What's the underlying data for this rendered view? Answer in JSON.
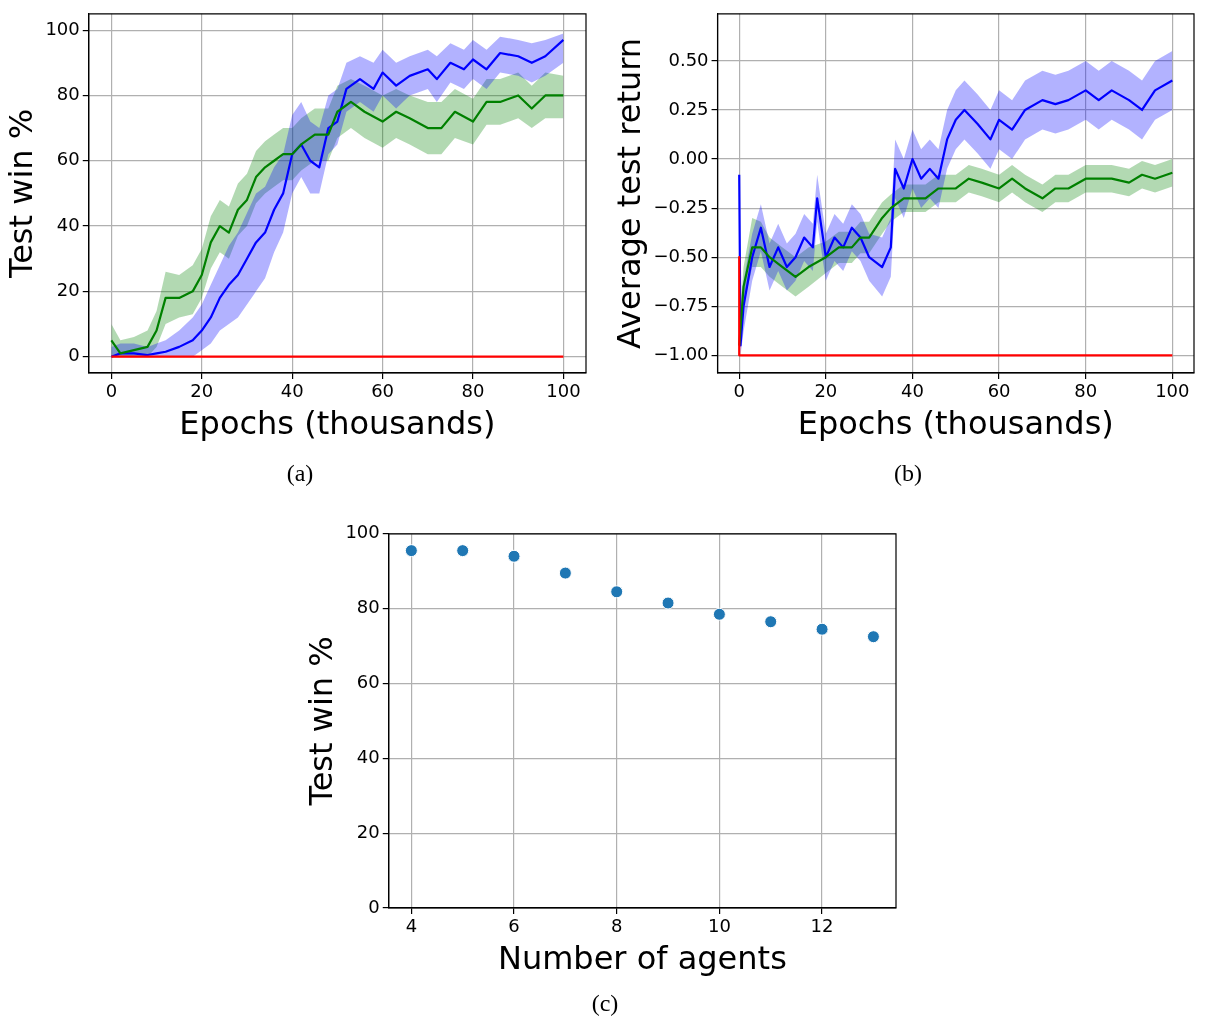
{
  "chart_data": [
    {
      "type": "line",
      "xlabel": "Epochs (thousands)",
      "ylabel": "Test win %",
      "xlim": [
        -5,
        105
      ],
      "ylim": [
        -5,
        105
      ],
      "xticks": [
        0,
        20,
        40,
        60,
        80,
        100
      ],
      "yticks": [
        0,
        20,
        40,
        60,
        80,
        100
      ],
      "grid": true,
      "annotations": [
        "(a)"
      ],
      "series": [
        {
          "color": "#0000ff",
          "x": [
            0,
            2,
            5,
            8,
            10,
            12,
            15,
            18,
            20,
            22,
            24,
            26,
            28,
            30,
            32,
            34,
            36,
            38,
            40,
            42,
            44,
            46,
            48,
            50,
            52,
            55,
            58,
            60,
            63,
            66,
            70,
            72,
            75,
            78,
            80,
            83,
            86,
            90,
            93,
            96,
            100
          ],
          "values": [
            0,
            1,
            1,
            0.5,
            1,
            1.5,
            3,
            5,
            8,
            12,
            18,
            22,
            25,
            30,
            35,
            38,
            45,
            50,
            62,
            65,
            60,
            58,
            70,
            72,
            82,
            85,
            82,
            87,
            83,
            86,
            88,
            85,
            90,
            88,
            91,
            88,
            93,
            92,
            90,
            92,
            97
          ],
          "lower": [
            0,
            0,
            0,
            0,
            0,
            0,
            0,
            0,
            2,
            4,
            8,
            10,
            12,
            16,
            20,
            24,
            32,
            38,
            50,
            55,
            50,
            50,
            62,
            65,
            75,
            78,
            75,
            80,
            76,
            80,
            82,
            78,
            84,
            82,
            85,
            82,
            87,
            86,
            84,
            86,
            90
          ],
          "upper": [
            3,
            4,
            4,
            3,
            4,
            5,
            8,
            12,
            16,
            22,
            28,
            34,
            38,
            44,
            50,
            52,
            58,
            62,
            74,
            78,
            72,
            70,
            80,
            82,
            90,
            92,
            90,
            94,
            90,
            92,
            94,
            92,
            96,
            94,
            97,
            94,
            98,
            97,
            96,
            97,
            99
          ]
        },
        {
          "color": "#008000",
          "x": [
            0,
            2,
            5,
            8,
            10,
            12,
            15,
            18,
            20,
            22,
            24,
            26,
            28,
            30,
            32,
            34,
            36,
            38,
            40,
            42,
            45,
            48,
            50,
            53,
            56,
            60,
            63,
            66,
            70,
            73,
            76,
            80,
            83,
            86,
            90,
            93,
            96,
            100
          ],
          "values": [
            5,
            1,
            2,
            3,
            8,
            18,
            18,
            20,
            25,
            35,
            40,
            38,
            45,
            48,
            55,
            58,
            60,
            62,
            62,
            65,
            68,
            68,
            75,
            78,
            75,
            72,
            75,
            73,
            70,
            70,
            75,
            72,
            78,
            78,
            80,
            76,
            80,
            80
          ],
          "lower": [
            0,
            0,
            0,
            0,
            3,
            10,
            12,
            13,
            18,
            27,
            32,
            30,
            37,
            40,
            47,
            50,
            52,
            54,
            54,
            57,
            60,
            60,
            67,
            70,
            67,
            64,
            67,
            65,
            62,
            62,
            67,
            65,
            71,
            71,
            73,
            70,
            73,
            73
          ],
          "upper": [
            10,
            5,
            6,
            8,
            14,
            26,
            25,
            28,
            33,
            43,
            48,
            46,
            53,
            56,
            63,
            66,
            68,
            70,
            70,
            73,
            76,
            76,
            83,
            85,
            83,
            80,
            82,
            80,
            78,
            78,
            82,
            79,
            85,
            85,
            87,
            83,
            87,
            86
          ]
        },
        {
          "color": "#ff0000",
          "x": [
            0,
            100
          ],
          "values": [
            0,
            0
          ]
        }
      ]
    },
    {
      "type": "line",
      "xlabel": "Epochs (thousands)",
      "ylabel": "Average test return",
      "xlim": [
        -5,
        105
      ],
      "ylim": [
        -1.09,
        0.74
      ],
      "xticks": [
        0,
        20,
        40,
        60,
        80,
        100
      ],
      "yticks": [
        {
          "value": -1,
          "label": "−1.00"
        },
        {
          "value": -0.75,
          "label": "−0.75"
        },
        {
          "value": -0.5,
          "label": "−0.50"
        },
        {
          "value": -0.25,
          "label": "−0.25"
        },
        {
          "value": 0,
          "label": "0.00"
        },
        {
          "value": 0.25,
          "label": "0.25"
        },
        {
          "value": 0.5,
          "label": "0.50"
        }
      ],
      "grid": true,
      "annotations": [
        "(b)"
      ],
      "series": [
        {
          "color": "#0000ff",
          "x": [
            0,
            0.3,
            1,
            3,
            5,
            7,
            9,
            11,
            13,
            15,
            17,
            18,
            20,
            22,
            24,
            26,
            28,
            30,
            33,
            35,
            36,
            38,
            40,
            42,
            44,
            46,
            48,
            50,
            52,
            55,
            58,
            60,
            63,
            66,
            70,
            73,
            76,
            80,
            83,
            86,
            90,
            93,
            96,
            100
          ],
          "values": [
            -0.08,
            -0.95,
            -0.75,
            -0.5,
            -0.35,
            -0.55,
            -0.45,
            -0.55,
            -0.5,
            -0.4,
            -0.45,
            -0.2,
            -0.5,
            -0.4,
            -0.45,
            -0.35,
            -0.4,
            -0.5,
            -0.55,
            -0.45,
            -0.05,
            -0.15,
            0,
            -0.1,
            -0.05,
            -0.1,
            0.1,
            0.2,
            0.25,
            0.18,
            0.1,
            0.2,
            0.15,
            0.25,
            0.3,
            0.28,
            0.3,
            0.35,
            0.3,
            0.35,
            0.3,
            0.25,
            0.35,
            0.4
          ],
          "lower": [
            -0.2,
            -1.0,
            -0.88,
            -0.62,
            -0.47,
            -0.67,
            -0.57,
            -0.67,
            -0.62,
            -0.52,
            -0.57,
            -0.32,
            -0.62,
            -0.52,
            -0.57,
            -0.47,
            -0.52,
            -0.62,
            -0.7,
            -0.6,
            -0.2,
            -0.3,
            -0.15,
            -0.25,
            -0.2,
            -0.25,
            -0.05,
            0.05,
            0.1,
            0.03,
            -0.05,
            0.05,
            0,
            0.1,
            0.15,
            0.13,
            0.15,
            0.2,
            0.15,
            0.2,
            0.15,
            0.1,
            0.2,
            0.25
          ],
          "upper": [
            0,
            -0.85,
            -0.62,
            -0.38,
            -0.23,
            -0.43,
            -0.33,
            -0.43,
            -0.38,
            -0.28,
            -0.33,
            -0.08,
            -0.38,
            -0.28,
            -0.33,
            -0.23,
            -0.28,
            -0.38,
            -0.4,
            -0.3,
            0.1,
            0,
            0.15,
            0.05,
            0.1,
            0.05,
            0.25,
            0.35,
            0.4,
            0.33,
            0.25,
            0.35,
            0.3,
            0.4,
            0.45,
            0.43,
            0.45,
            0.5,
            0.45,
            0.5,
            0.45,
            0.4,
            0.5,
            0.55
          ]
        },
        {
          "color": "#008000",
          "x": [
            0,
            1,
            3,
            5,
            7,
            10,
            13,
            16,
            20,
            23,
            26,
            28,
            30,
            33,
            35,
            38,
            40,
            43,
            46,
            50,
            53,
            56,
            60,
            63,
            66,
            70,
            73,
            76,
            80,
            83,
            86,
            90,
            93,
            96,
            100
          ],
          "values": [
            -0.95,
            -0.65,
            -0.45,
            -0.45,
            -0.5,
            -0.55,
            -0.6,
            -0.55,
            -0.5,
            -0.45,
            -0.45,
            -0.4,
            -0.4,
            -0.3,
            -0.25,
            -0.2,
            -0.2,
            -0.2,
            -0.15,
            -0.15,
            -0.1,
            -0.12,
            -0.15,
            -0.1,
            -0.15,
            -0.2,
            -0.15,
            -0.15,
            -0.1,
            -0.1,
            -0.1,
            -0.12,
            -0.08,
            -0.1,
            -0.07
          ],
          "lower": [
            -1.0,
            -0.75,
            -0.55,
            -0.55,
            -0.6,
            -0.65,
            -0.7,
            -0.65,
            -0.58,
            -0.53,
            -0.53,
            -0.48,
            -0.48,
            -0.38,
            -0.32,
            -0.27,
            -0.27,
            -0.27,
            -0.22,
            -0.22,
            -0.17,
            -0.19,
            -0.22,
            -0.17,
            -0.22,
            -0.27,
            -0.22,
            -0.22,
            -0.17,
            -0.17,
            -0.17,
            -0.19,
            -0.15,
            -0.17,
            -0.14
          ],
          "upper": [
            -0.85,
            -0.55,
            -0.3,
            -0.32,
            -0.4,
            -0.45,
            -0.5,
            -0.45,
            -0.42,
            -0.37,
            -0.37,
            -0.32,
            -0.32,
            -0.22,
            -0.18,
            -0.13,
            -0.13,
            -0.13,
            -0.08,
            -0.08,
            -0.03,
            -0.05,
            -0.08,
            -0.03,
            -0.08,
            -0.13,
            -0.08,
            -0.08,
            -0.03,
            -0.03,
            -0.03,
            -0.05,
            -0.01,
            -0.03,
            0
          ]
        },
        {
          "color": "#ff0000",
          "x": [
            0,
            0,
            100
          ],
          "values": [
            -0.5,
            -1,
            -1
          ]
        }
      ]
    },
    {
      "type": "scatter",
      "xlabel": "Number of agents",
      "ylabel": "Test win %",
      "xlim": [
        3.56,
        13.44
      ],
      "ylim": [
        0,
        100
      ],
      "xticks": [
        4,
        6,
        8,
        10,
        12
      ],
      "yticks": [
        0,
        20,
        40,
        60,
        80,
        100
      ],
      "grid": true,
      "marker": "circle",
      "annotations": [
        "(c)"
      ],
      "series": [
        {
          "color": "#1f77b4",
          "x": [
            4,
            5,
            6,
            7,
            8,
            9,
            10,
            11,
            12,
            13
          ],
          "values": [
            95.5,
            95.5,
            94,
            89.5,
            84.5,
            81.5,
            78.5,
            76.5,
            74.5,
            72.5
          ]
        }
      ]
    }
  ]
}
